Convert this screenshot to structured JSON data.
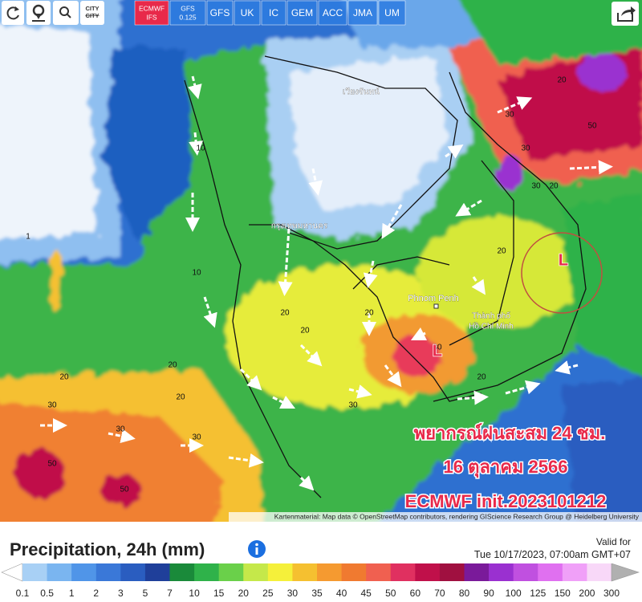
{
  "toolbar": {
    "city_button": [
      "CITY",
      "CITY"
    ]
  },
  "model_tabs": [
    [
      "ECMWF",
      "IFS"
    ],
    [
      "GFS",
      "0.125"
    ],
    [
      "GFS"
    ],
    [
      "UK"
    ],
    [
      "IC"
    ],
    [
      "GEM"
    ],
    [
      "ACC"
    ],
    [
      "JMA"
    ],
    [
      "UM"
    ]
  ],
  "map": {
    "places": [
      "Phnom Penh",
      "Thành phố",
      "Hồ Chí Minh",
      "กรุงเทพมหานคร",
      "เวียงจันทน์"
    ],
    "low_markers": [
      "L",
      "L"
    ],
    "contour_labels": [
      "20",
      "30",
      "50",
      "30",
      "20",
      "30",
      "20",
      "10",
      "20",
      "20",
      "20",
      "20",
      "20",
      "30",
      "20",
      "30",
      "30",
      "50",
      "50",
      "30",
      "30",
      "20",
      "10",
      "1",
      "10"
    ],
    "overlay": [
      "พยากรณ์ฝนสะสม 24 ชม.",
      "16 ตุลาคม 2566",
      "ECMWF init.2023101212"
    ],
    "attribution": "Kartenmaterial: Map data © OpenStreetMap contributors, rendering GIScience Research Group @ Heidelberg University"
  },
  "legend": {
    "title": "Precipitation, 24h (mm)",
    "valid_label": "Valid for",
    "valid_time": "Tue 10/17/2023, 07:00am GMT+07",
    "scale_values": [
      0.1,
      0.5,
      1,
      2,
      3,
      5,
      7,
      10,
      15,
      20,
      25,
      30,
      35,
      40,
      45,
      50,
      60,
      70,
      80,
      90,
      100,
      125,
      150,
      200,
      300
    ],
    "scale_colors": [
      "#ffffff",
      "#a8d0f5",
      "#7ab5f0",
      "#5095e8",
      "#3a78d8",
      "#2a5dc0",
      "#1f3f9a",
      "#1a8a3a",
      "#2fb24a",
      "#6ad04a",
      "#c5e84a",
      "#f5f03a",
      "#f5c030",
      "#f59a30",
      "#f07a30",
      "#f06050",
      "#e03060",
      "#c0104a",
      "#a01040",
      "#7a1a9a",
      "#9a30d0",
      "#c050e0",
      "#e070f0",
      "#f0a0f8",
      "#f8d8f8",
      "#b0b0b0"
    ]
  }
}
